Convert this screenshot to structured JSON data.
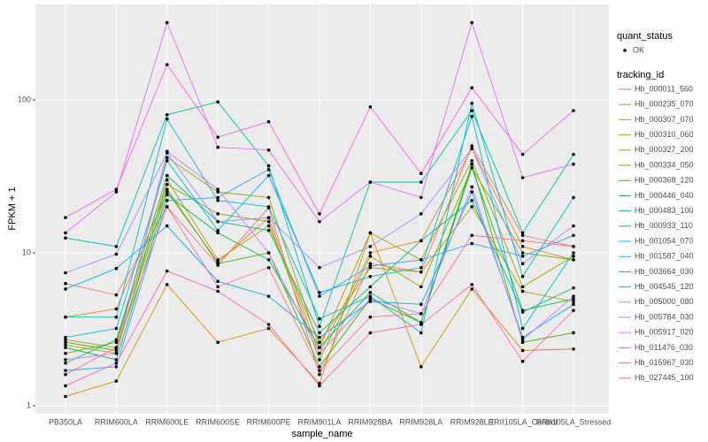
{
  "chart_data": {
    "type": "line",
    "x_label": "sample_name",
    "y_label": "FPKM + 1",
    "log_y": true,
    "grid": true,
    "ylim": [
      0.887,
      421
    ],
    "yticks": [
      1,
      10,
      100
    ],
    "legend_position": "right",
    "shape_legend": {
      "title": "quant_status",
      "levels": [
        "OK"
      ],
      "color": "#000000"
    },
    "legend_title": "tracking_id",
    "categories": [
      "PB350LA",
      "RRIM600LA",
      "RRIM600LE",
      "RRIM600SE",
      "RRIM600PE",
      "RRIM901LA",
      "RRIM928BA",
      "RRIM928LA",
      "RRIM928LE",
      "RRII105LA_Control",
      "RRII105LA_Stressed"
    ],
    "series": [
      {
        "name": "Hb_000011_560",
        "color": "#F8766D",
        "values": [
          6.3,
          5.3,
          20,
          8.3,
          19.7,
          1.6,
          8.5,
          7.5,
          50,
          13,
          11
        ]
      },
      {
        "name": "Hb_000235_070",
        "color": "#EA8331",
        "values": [
          3.8,
          4.3,
          25,
          8.7,
          17,
          2.2,
          10,
          12,
          48,
          11,
          9
        ]
      },
      {
        "name": "Hb_000307_070",
        "color": "#D89000",
        "values": [
          1.15,
          1.45,
          6.2,
          2.6,
          3.2,
          1.4,
          13.5,
          1.8,
          5.8,
          2.3,
          2.35
        ]
      },
      {
        "name": "Hb_000310_060",
        "color": "#C09B00",
        "values": [
          2.5,
          2.2,
          30,
          9,
          15,
          2.6,
          8,
          7.5,
          20,
          5.6,
          4.8
        ]
      },
      {
        "name": "Hb_000327_200",
        "color": "#A3A500",
        "values": [
          2.7,
          2.4,
          42,
          25,
          23,
          2.4,
          13.5,
          9,
          40,
          6,
          9.5
        ]
      },
      {
        "name": "Hb_000334_050",
        "color": "#7CAE00",
        "values": [
          2.2,
          2.6,
          28,
          18,
          16,
          2.0,
          9.5,
          6,
          36,
          10,
          9
        ]
      },
      {
        "name": "Hb_000368_120",
        "color": "#39B600",
        "values": [
          2.6,
          2.3,
          26,
          8.5,
          10,
          1.8,
          5,
          3.5,
          38,
          2.6,
          3
        ]
      },
      {
        "name": "Hb_000446_040",
        "color": "#00BB4E",
        "values": [
          2.4,
          2.0,
          24,
          13.5,
          9,
          2.4,
          5.5,
          3.5,
          36,
          4.2,
          5
        ]
      },
      {
        "name": "Hb_000483_100",
        "color": "#00BF7D",
        "values": [
          1.9,
          2.7,
          32,
          16,
          14,
          3.0,
          6,
          12,
          22,
          4.1,
          5.9
        ]
      },
      {
        "name": "Hb_000933_110",
        "color": "#00C1A3",
        "values": [
          12.5,
          11,
          80,
          97,
          37,
          3.3,
          29,
          29,
          85,
          13.5,
          44
        ]
      },
      {
        "name": "Hb_001054_070",
        "color": "#00BFC4",
        "values": [
          3.8,
          3.8,
          75,
          22,
          20,
          3.7,
          5.2,
          3.0,
          95,
          7,
          23
        ]
      },
      {
        "name": "Hb_001587_040",
        "color": "#00BAE0",
        "values": [
          2.8,
          3.2,
          40,
          14,
          32,
          5.5,
          7,
          8,
          78,
          3.2,
          10
        ]
      },
      {
        "name": "Hb_003664_030",
        "color": "#00B0F6",
        "values": [
          5.8,
          7.9,
          15,
          6.5,
          5.2,
          2.8,
          4.8,
          4.6,
          25,
          2.8,
          4.6
        ]
      },
      {
        "name": "Hb_004545_120",
        "color": "#35A2FF",
        "values": [
          1.7,
          1.8,
          22,
          23,
          35,
          5.2,
          8.2,
          9,
          11.5,
          9.5,
          13
        ]
      },
      {
        "name": "Hb_005000_080",
        "color": "#9590FF",
        "values": [
          7.4,
          9.8,
          45,
          16,
          17,
          8,
          11,
          18,
          48,
          8.5,
          15
        ]
      },
      {
        "name": "Hb_005784_030",
        "color": "#C77CFF",
        "values": [
          2.0,
          2.2,
          46,
          26,
          10,
          2.2,
          5,
          4,
          27,
          2.7,
          5.2
        ]
      },
      {
        "name": "Hb_005917_020",
        "color": "#E76BF3",
        "values": [
          13.5,
          25,
          320,
          49,
          47,
          16,
          29,
          23,
          320,
          31,
          38
        ]
      },
      {
        "name": "Hb_011476_030",
        "color": "#FA62DB",
        "values": [
          17,
          26,
          170,
          57,
          72,
          18,
          90,
          33,
          120,
          44,
          85
        ]
      },
      {
        "name": "Hb_015967_030",
        "color": "#FF62BC",
        "values": [
          1.35,
          1.9,
          7.6,
          5.6,
          3.4,
          1.35,
          3.0,
          3.4,
          6.2,
          1.95,
          4.2
        ]
      },
      {
        "name": "Hb_027445_100",
        "color": "#FF6C91",
        "values": [
          1.6,
          2.4,
          20,
          6,
          8,
          1.7,
          3.8,
          4,
          13,
          12,
          11
        ]
      }
    ]
  }
}
